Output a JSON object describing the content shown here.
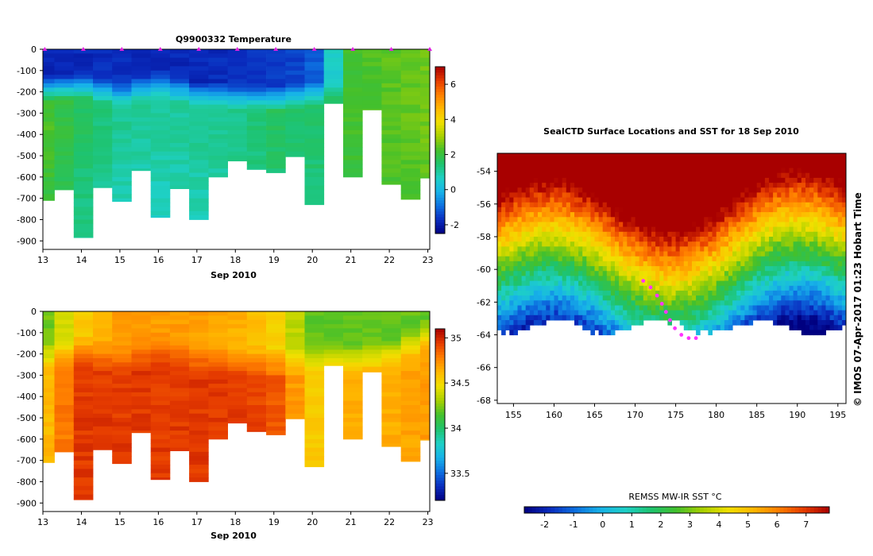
{
  "chart_data": [
    {
      "id": "temperature",
      "type": "heatmap",
      "title": "Q9900332  Temperature",
      "xlabel": "Sep 2010",
      "ylabel": "",
      "xlim": [
        13,
        23.05
      ],
      "ylim": [
        -940,
        0
      ],
      "x_ticks": [
        13,
        14,
        15,
        16,
        17,
        18,
        19,
        20,
        21,
        22,
        23
      ],
      "y_ticks": [
        0,
        -100,
        -200,
        -300,
        -400,
        -500,
        -600,
        -700,
        -800,
        -900
      ],
      "colorbar": {
        "min": -2.5,
        "max": 7,
        "ticks": [
          -2,
          0,
          2,
          4,
          6
        ]
      },
      "profile_days": [
        13.05,
        13.55,
        14.05,
        14.55,
        15.05,
        15.55,
        16.05,
        16.55,
        17.05,
        17.55,
        18.05,
        18.55,
        19.05,
        19.55,
        20.05,
        20.55,
        21.05,
        21.55,
        22.05,
        22.55,
        23.05
      ],
      "profile_max_depth": [
        -710,
        -660,
        -885,
        -650,
        -715,
        -570,
        -790,
        -655,
        -800,
        -600,
        -525,
        -565,
        -580,
        -505,
        -730,
        -255,
        -600,
        -285,
        -635,
        -705,
        -605
      ],
      "surface_marker_days": [
        13.05,
        14.05,
        15.05,
        16.05,
        17.05,
        18.05,
        19.05,
        20.05,
        21.05,
        22.05,
        23.05
      ],
      "surface_temp": [
        -1.8,
        -1.8,
        -1.7,
        -1.8,
        -1.8,
        -1.7,
        -1.6,
        -1.3,
        2.2,
        2.4,
        2.6
      ],
      "mixed_layer_depth": [
        130,
        110,
        150,
        100,
        150,
        160,
        170,
        150,
        150,
        130,
        40
      ],
      "deep_temp": [
        2.3,
        1.6,
        1.1,
        1.0,
        1.1,
        1.2,
        1.6,
        1.5,
        2.2,
        2.4,
        2.6
      ]
    },
    {
      "id": "salinity",
      "type": "heatmap",
      "title": "",
      "xlabel": "Sep 2010",
      "ylabel": "",
      "xlim": [
        13,
        23.05
      ],
      "ylim": [
        -940,
        0
      ],
      "x_ticks": [
        13,
        14,
        15,
        16,
        17,
        18,
        19,
        20,
        21,
        22,
        23
      ],
      "y_ticks": [
        0,
        -100,
        -200,
        -300,
        -400,
        -500,
        -600,
        -700,
        -800,
        -900
      ],
      "colorbar": {
        "min": 33.2,
        "max": 35.1,
        "ticks": [
          33.5,
          34,
          34.5,
          35
        ]
      },
      "surface_salinity": [
        34.2,
        34.55,
        34.7,
        34.7,
        34.7,
        34.65,
        34.55,
        34.2,
        34.2,
        34.2,
        34.2
      ],
      "deep_salinity": [
        34.6,
        34.95,
        34.95,
        34.95,
        34.95,
        34.95,
        34.9,
        34.55,
        34.65,
        34.65,
        34.7
      ]
    },
    {
      "id": "sst_map",
      "type": "heatmap",
      "title": "SealCTD Surface Locations and SST for 18 Sep 2010",
      "xlabel": "",
      "ylabel": "",
      "xlim": [
        153,
        196
      ],
      "ylim": [
        -68.2,
        -52.9
      ],
      "x_ticks": [
        155,
        160,
        165,
        170,
        175,
        180,
        185,
        190,
        195
      ],
      "y_ticks": [
        -54,
        -56,
        -58,
        -60,
        -62,
        -64,
        -66,
        -68
      ],
      "credit": "© IMOS 07-Apr-2017 01:23 Hobart Time",
      "colorbar": {
        "label": "REMSS MW-IR SST °C",
        "min": -2.7,
        "max": 7.8,
        "ticks": [
          -2,
          -1,
          0,
          1,
          2,
          3,
          4,
          5,
          6,
          7
        ]
      },
      "track_lon": [
        171.0,
        171.9,
        172.7,
        173.3,
        173.8,
        174.3,
        174.9,
        175.7,
        176.6,
        177.5
      ],
      "track_lat": [
        -60.7,
        -61.1,
        -61.6,
        -62.1,
        -62.6,
        -63.1,
        -63.6,
        -64.0,
        -64.2,
        -64.2
      ],
      "colormap": [
        "#000080",
        "#0a2cbe",
        "#0d6fe0",
        "#17b2e8",
        "#1ed0c6",
        "#1ec36e",
        "#44c02c",
        "#a8d000",
        "#f0e000",
        "#ffb800",
        "#ff7f00",
        "#e63c00",
        "#a80000"
      ]
    }
  ]
}
